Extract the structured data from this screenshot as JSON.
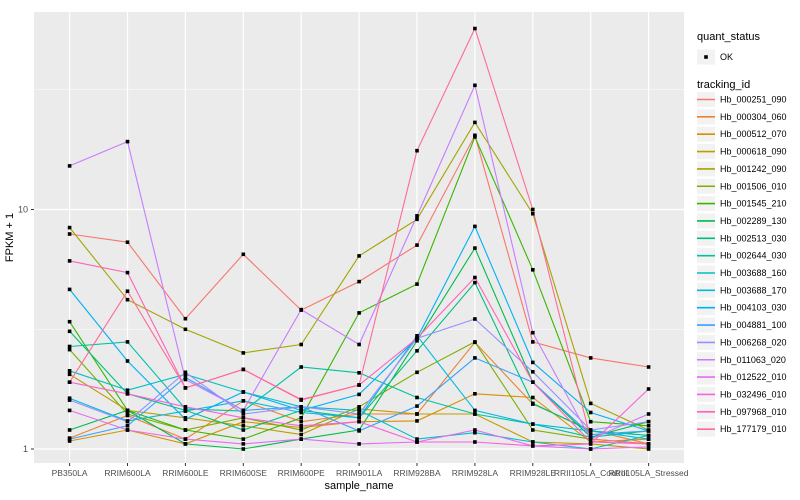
{
  "figure": {
    "background": "#FFFFFF",
    "panel_background": "#EBEBEB",
    "gridline_color": "#FFFFFF",
    "tick_color": "#333333",
    "tick_label_color": "#4D4D4D",
    "text_color": "#000000",
    "marker_color": "#000000",
    "legend_key_background": "#F2F2F2"
  },
  "chart_data": {
    "type": "line",
    "title": "",
    "xlabel": "sample_name",
    "ylabel": "FPKM + 1",
    "yscale": "log10",
    "ylim": [
      0.874,
      66.7
    ],
    "ytick_values": [
      1,
      10
    ],
    "ytick_labels": [
      "1",
      "10"
    ],
    "y_minor_values": [
      3.1623,
      31.623
    ],
    "grid": true,
    "legend_position": "right",
    "categories": [
      "PB350LA",
      "RRIM600LA",
      "RRIM600LE",
      "RRIM600SE",
      "RRIM600PE",
      "RRIM901LA",
      "RRIM928BA",
      "RRIM928LA",
      "RRIM928LE",
      "RRII105LA_Control",
      "RRII105LA_Stressed"
    ],
    "legend": {
      "quant_status_title": "quant_status",
      "quant_status_items": [
        "OK"
      ],
      "tracking_id_title": "tracking_id"
    },
    "series": [
      {
        "name": "Hb_000251_090",
        "color": "#F8766D",
        "values": [
          7.9,
          7.3,
          3.5,
          6.5,
          3.8,
          5.0,
          7.1,
          20.4,
          2.8,
          2.4,
          2.2
        ]
      },
      {
        "name": "Hb_000304_060",
        "color": "#EA8331",
        "values": [
          1.11,
          1.38,
          1.1,
          1.59,
          1.3,
          1.4,
          1.4,
          2.79,
          1.54,
          1.2,
          1.05
        ]
      },
      {
        "name": "Hb_000512_070",
        "color": "#D89000",
        "values": [
          1.08,
          1.2,
          1.05,
          1.3,
          1.23,
          1.3,
          1.31,
          1.7,
          1.64,
          1.07,
          1.1
        ]
      },
      {
        "name": "Hb_000618_090",
        "color": "#C09B00",
        "values": [
          2.05,
          1.45,
          1.35,
          1.25,
          1.15,
          1.47,
          1.4,
          1.4,
          1.07,
          1.05,
          1.0
        ]
      },
      {
        "name": "Hb_001242_090",
        "color": "#A3A500",
        "values": [
          8.4,
          4.2,
          3.16,
          2.52,
          2.73,
          6.4,
          9.1,
          23.1,
          9.6,
          1.55,
          1.2
        ]
      },
      {
        "name": "Hb_001506_010",
        "color": "#7CAE00",
        "values": [
          2.6,
          1.4,
          1.2,
          1.35,
          1.2,
          1.5,
          2.09,
          2.8,
          1.2,
          1.1,
          1.05
        ]
      },
      {
        "name": "Hb_001545_210",
        "color": "#39B600",
        "values": [
          3.4,
          1.45,
          1.2,
          1.1,
          1.35,
          3.7,
          4.88,
          20.1,
          5.6,
          1.3,
          1.25
        ]
      },
      {
        "name": "Hb_002289_130",
        "color": "#00BB4E",
        "values": [
          1.2,
          1.45,
          1.05,
          1.0,
          1.1,
          1.2,
          2.83,
          6.9,
          1.9,
          1.12,
          1.3
        ]
      },
      {
        "name": "Hb_002513_030",
        "color": "#00BF7D",
        "values": [
          3.1,
          1.7,
          1.45,
          1.2,
          1.45,
          1.35,
          2.57,
          4.95,
          1.55,
          1.19,
          1.14
        ]
      },
      {
        "name": "Hb_002644_030",
        "color": "#00C1A3",
        "values": [
          2.68,
          2.8,
          1.47,
          1.44,
          2.2,
          2.08,
          1.64,
          1.4,
          1.27,
          1.12,
          1.19
        ]
      },
      {
        "name": "Hb_003688_160",
        "color": "#00BFC4",
        "values": [
          2.12,
          1.76,
          2.05,
          1.73,
          1.5,
          1.45,
          1.1,
          1.17,
          1.07,
          1.0,
          1.14
        ]
      },
      {
        "name": "Hb_003688_170",
        "color": "#00BAE0",
        "values": [
          1.63,
          1.31,
          1.44,
          1.59,
          1.42,
          1.35,
          2.97,
          1.45,
          1.27,
          1.19,
          1.1
        ]
      },
      {
        "name": "Hb_004103_030",
        "color": "#00B0F6",
        "values": [
          4.64,
          2.33,
          1.33,
          1.73,
          1.45,
          1.69,
          2.9,
          8.5,
          2.3,
          1.42,
          1.19
        ]
      },
      {
        "name": "Hb_004881_100",
        "color": "#35A2FF",
        "values": [
          1.1,
          1.25,
          1.99,
          1.45,
          1.5,
          1.19,
          1.51,
          2.4,
          1.9,
          1.15,
          1.19
        ]
      },
      {
        "name": "Hb_006268_020",
        "color": "#9590FF",
        "values": [
          1.6,
          1.3,
          2.09,
          1.4,
          1.5,
          1.4,
          2.9,
          3.49,
          2.1,
          1.2,
          1.3
        ]
      },
      {
        "name": "Hb_011063_020",
        "color": "#C77CFF",
        "values": [
          15.2,
          19.2,
          1.95,
          1.45,
          3.82,
          2.73,
          9.4,
          33.0,
          3.06,
          1.1,
          1.4
        ]
      },
      {
        "name": "Hb_012522_010",
        "color": "#E76BF3",
        "values": [
          1.45,
          1.2,
          1.1,
          1.05,
          1.1,
          1.05,
          1.07,
          1.2,
          1.03,
          1.0,
          1.02
        ]
      },
      {
        "name": "Hb_032496_010",
        "color": "#FA62DB",
        "values": [
          1.9,
          1.7,
          1.5,
          1.35,
          1.25,
          1.3,
          1.07,
          1.07,
          1.03,
          1.05,
          1.78
        ]
      },
      {
        "name": "Hb_097968_010",
        "color": "#FF62BC",
        "values": [
          6.1,
          5.45,
          1.8,
          2.15,
          1.61,
          1.85,
          2.9,
          5.2,
          1.9,
          1.07,
          1.05
        ]
      },
      {
        "name": "Hb_177179_010",
        "color": "#FF6A98",
        "values": [
          1.9,
          4.56,
          1.8,
          2.15,
          1.6,
          1.85,
          17.6,
          57.0,
          10.0,
          1.1,
          1.05
        ]
      }
    ]
  }
}
